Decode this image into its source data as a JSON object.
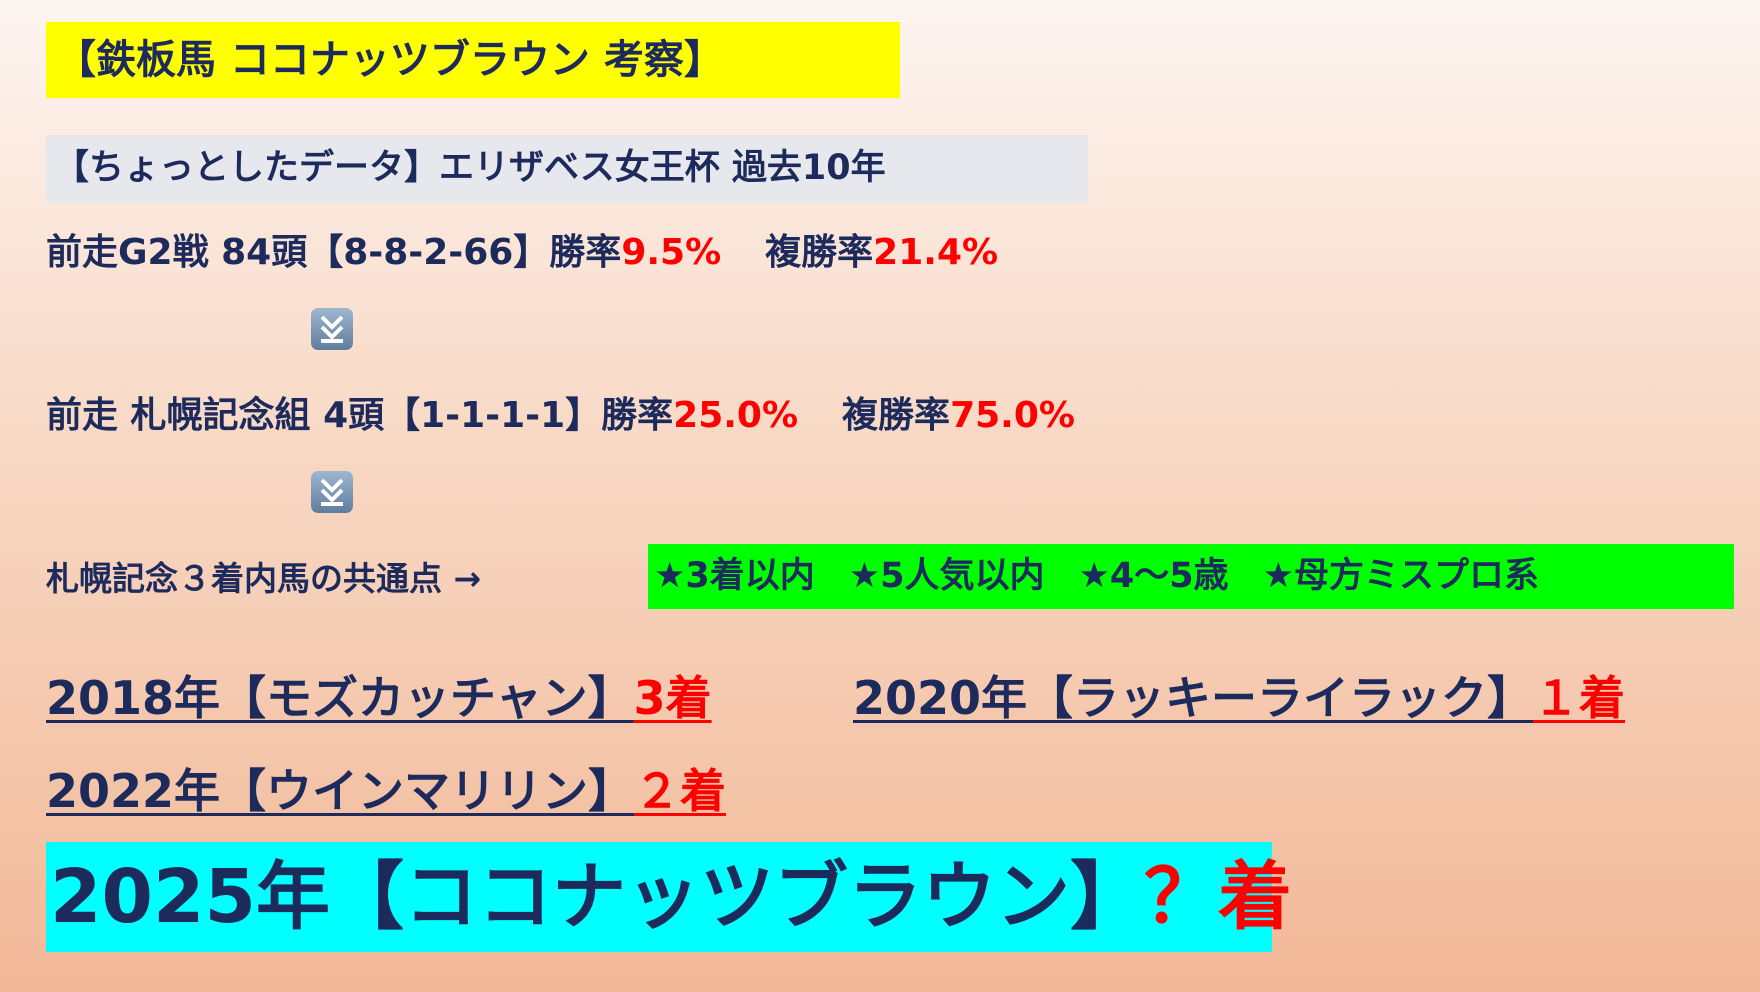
{
  "title": "【鉄板馬 ココナッツブラウン 考察】",
  "subtitle": "【ちょっとしたデータ】エリザベス女王杯 過去10年",
  "stats": [
    {
      "label": "前走G2戦 84頭【8-8-2-66】勝率",
      "win_rate": "9.5%",
      "place_label": "複勝率",
      "place_rate": "21.4%"
    },
    {
      "label": "前走 札幌記念組 4頭【1-1-1-1】勝率",
      "win_rate": "25.0%",
      "place_label": "複勝率",
      "place_rate": "75.0%"
    }
  ],
  "common_points": {
    "label": "札幌記念３着内馬の共通点 →",
    "items": [
      "★3着以内",
      "★5人気以内",
      "★4～5歳",
      "★母方ミスプロ系"
    ]
  },
  "results": [
    {
      "horse": "2018年【モズカッチャン】",
      "finish": "3着"
    },
    {
      "horse": "2020年【ラッキーライラック】",
      "finish": "１着"
    },
    {
      "horse": "2022年【ウインマリリン】",
      "finish": "２着"
    }
  ],
  "target": {
    "horse": "2025年【ココナッツブラウン】",
    "finish": "？着"
  }
}
